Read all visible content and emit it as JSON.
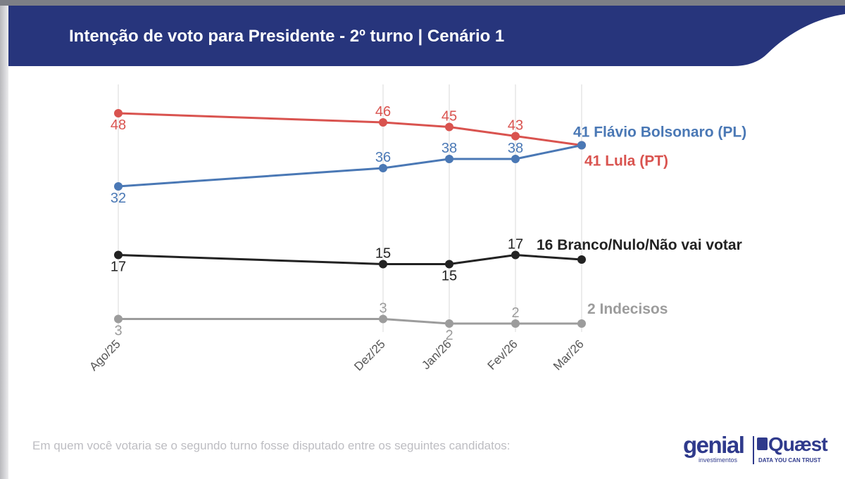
{
  "header": {
    "title": "Intenção de voto para Presidente - 2º turno | Cenário 1",
    "band_color": "#27357c"
  },
  "caption": "Em quem você votaria se o segundo turno fosse disputado entre os seguintes candidatos:",
  "logos": {
    "genial": {
      "wordmark": "genial",
      "tagline": "investimentos"
    },
    "quaest": {
      "wordmark": "Quæst",
      "tagline": "DATA YOU CAN TRUST"
    }
  },
  "chart_data": {
    "type": "line",
    "title": "Intenção de voto para Presidente - 2º turno | Cenário 1",
    "x": [
      "Ago/25",
      "Dez/25",
      "Jan/26",
      "Fev/26",
      "Mar/26"
    ],
    "x_months_since_ago25": [
      0,
      4,
      5,
      6,
      7
    ],
    "ylim": [
      0,
      50
    ],
    "grid": "vertical",
    "series": [
      {
        "name": "Lula (PT)",
        "color": "#d9534f",
        "values": [
          48,
          46,
          45,
          43,
          41
        ],
        "end_label": "41 Lula (PT)"
      },
      {
        "name": "Flávio Bolsonaro (PL)",
        "color": "#4a78b5",
        "values": [
          32,
          36,
          38,
          38,
          41
        ],
        "end_label": "41 Flávio Bolsonaro (PL)"
      },
      {
        "name": "Branco/Nulo/Não vai votar",
        "color": "#222222",
        "values": [
          17,
          15,
          15,
          17,
          16
        ],
        "end_label": "16 Branco/Nulo/Não vai votar"
      },
      {
        "name": "Indecisos",
        "color": "#9c9c9c",
        "values": [
          3,
          3,
          2,
          2,
          2
        ],
        "end_label": "2 Indecisos"
      }
    ]
  }
}
